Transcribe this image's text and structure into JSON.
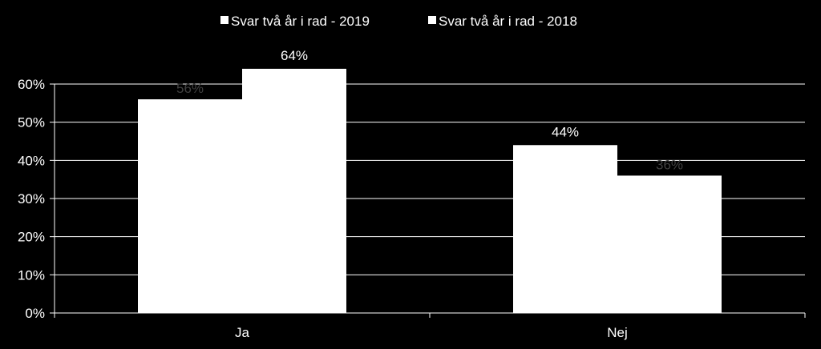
{
  "chart_data": {
    "type": "bar",
    "categories": [
      "Ja",
      "Nej"
    ],
    "series": [
      {
        "name": "Svar två år i rad - 2019",
        "values": [
          56,
          44
        ],
        "labels": [
          "56%",
          "44%"
        ]
      },
      {
        "name": "Svar två år i rad - 2018",
        "values": [
          64,
          36
        ],
        "labels": [
          "64%",
          "36%"
        ]
      }
    ],
    "ylim": [
      0,
      60
    ],
    "y_ticks": [
      "0%",
      "10%",
      "20%",
      "30%",
      "40%",
      "50%",
      "60%"
    ],
    "grid": true,
    "legend_position": "top-center",
    "colors": {
      "background": "#000000",
      "bar": "#ffffff",
      "grid": "#ffffff",
      "text": "#ffffff",
      "data_label_on_bar": "#404040"
    }
  }
}
